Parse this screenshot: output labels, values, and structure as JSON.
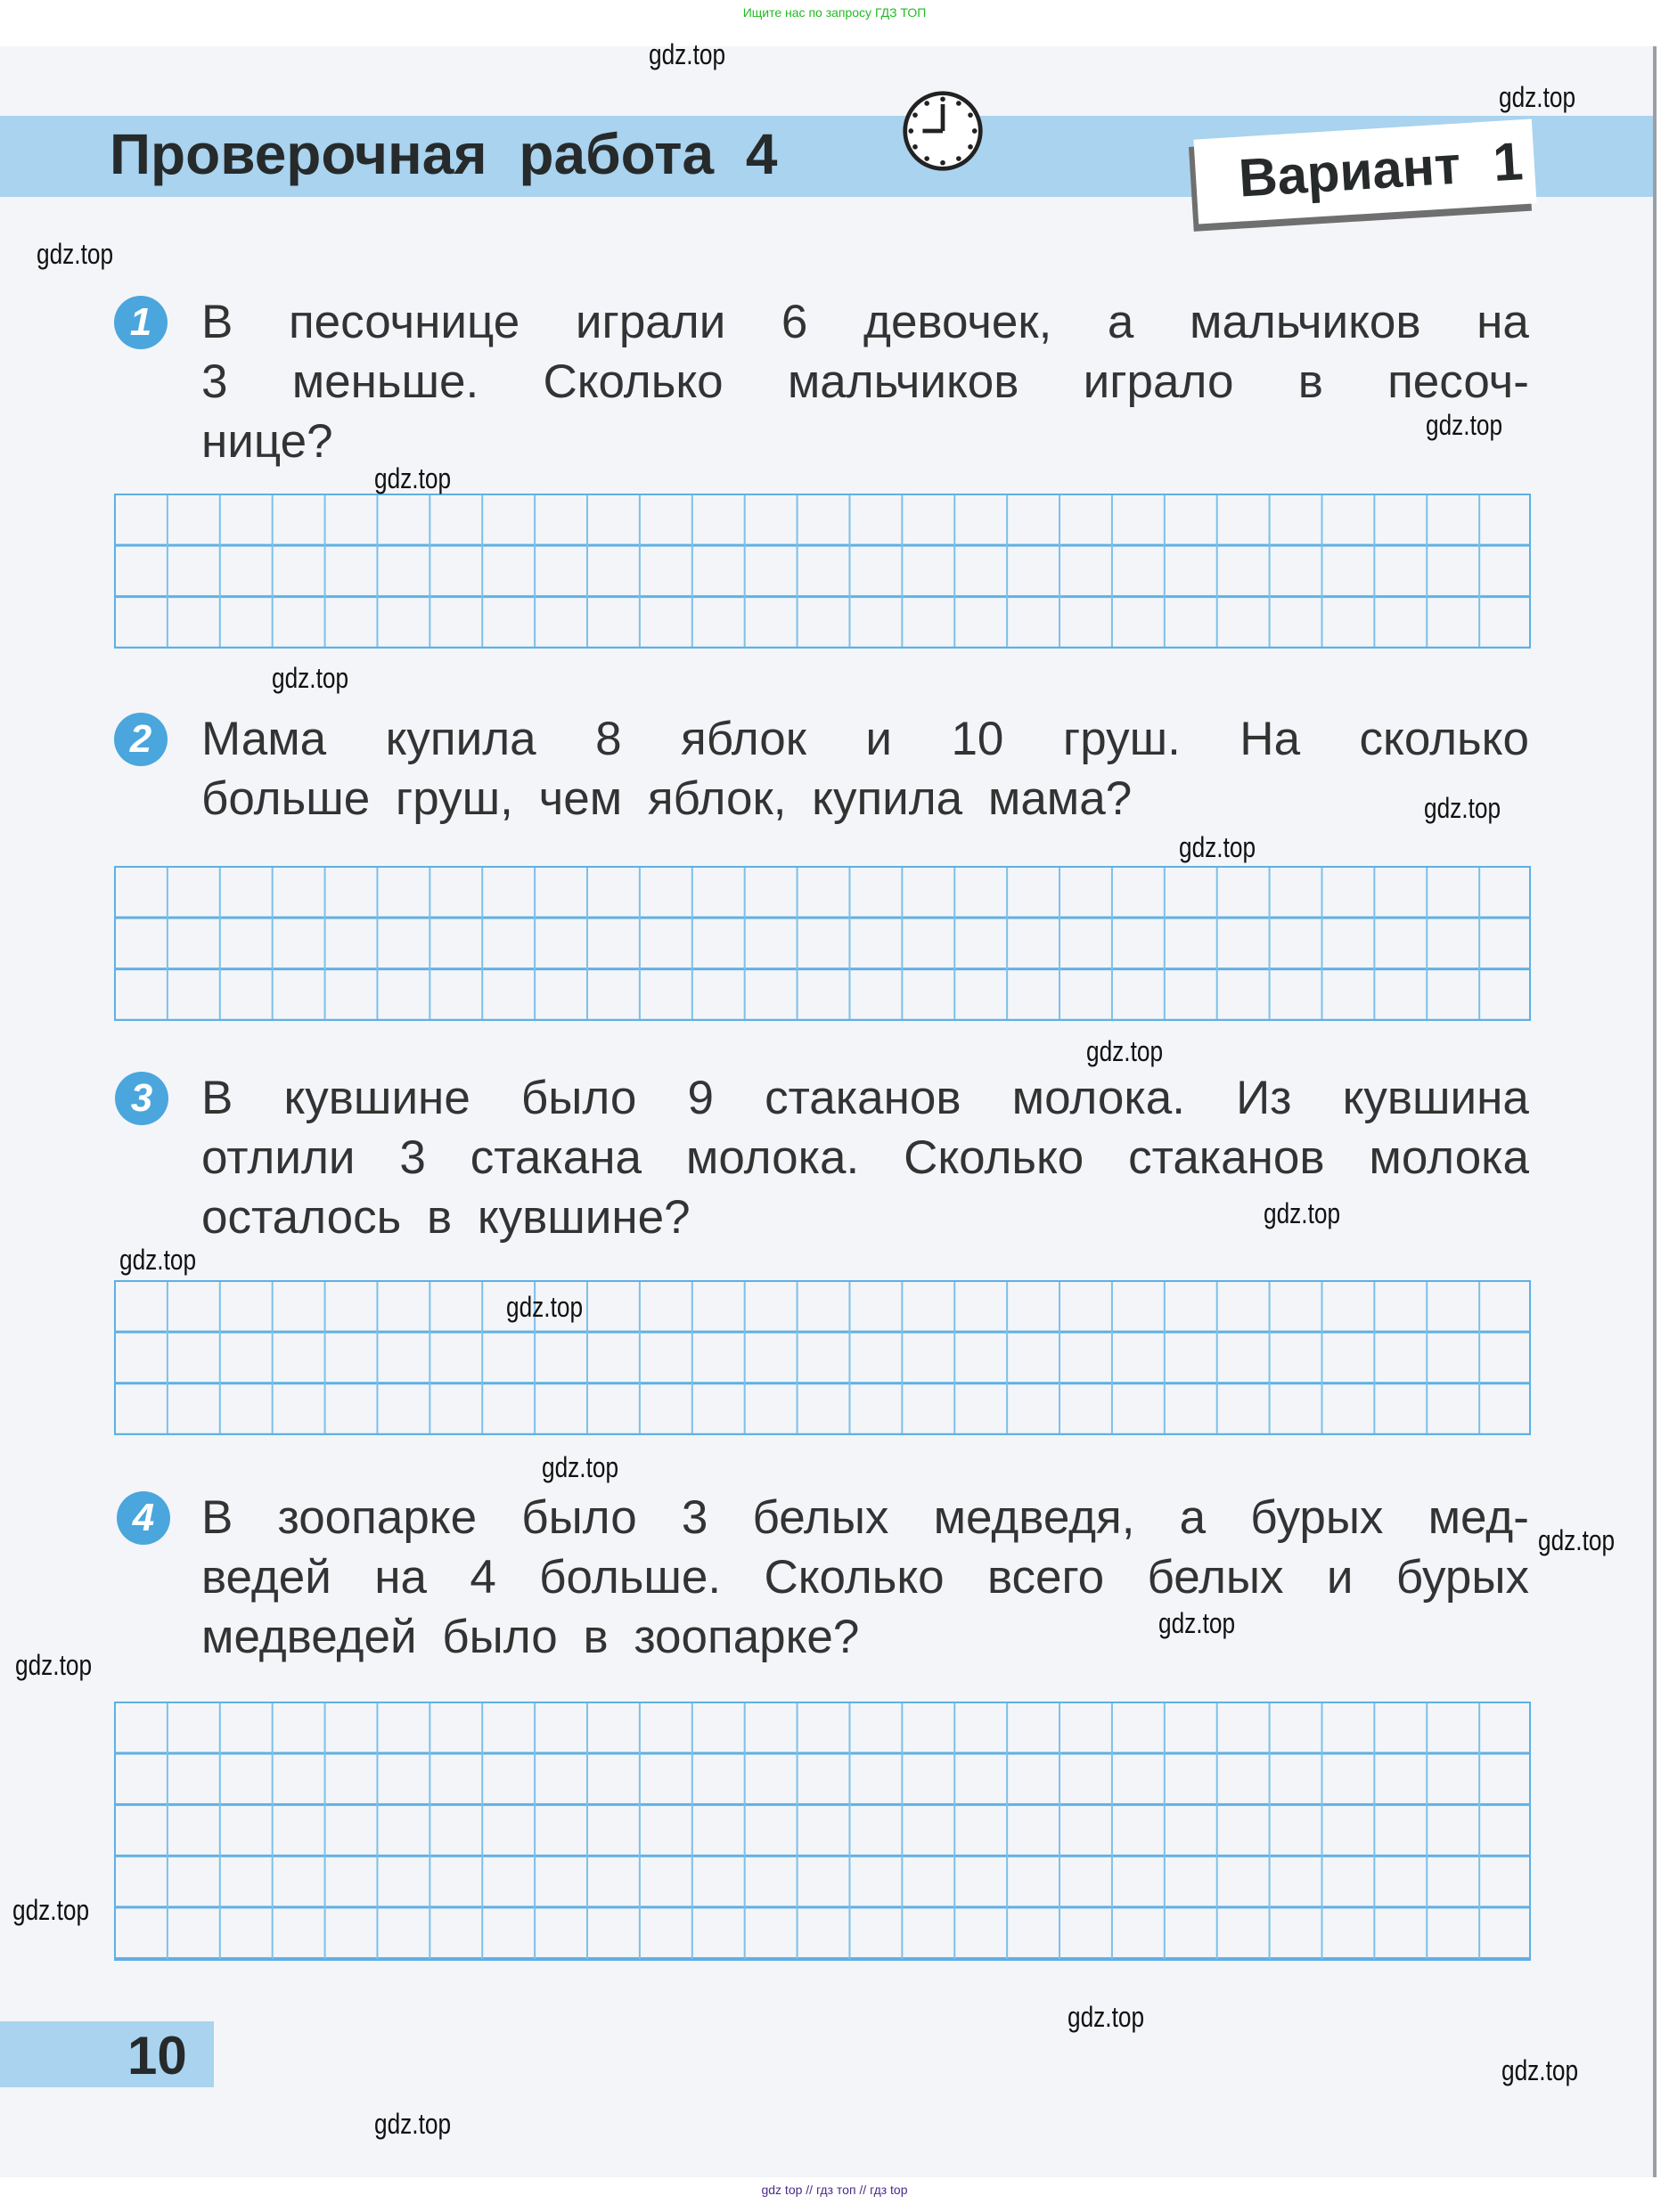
{
  "top_note": "Ищите нас по запросу ГДЗ ТОП",
  "header": {
    "title": "Проверочная работа 4",
    "variant": "Вариант 1",
    "clock_icon": "clock-icon"
  },
  "questions": [
    {
      "number": "1",
      "lines": [
        "В песочнице играли 6 девочек, а мальчиков на",
        "3 меньше. Сколько мальчиков играло в песоч-",
        "нице?"
      ],
      "grid_rows": 3
    },
    {
      "number": "2",
      "lines": [
        "Мама купила 8 яблок и 10 груш. На сколько",
        "больше груш, чем яблок, купила мама?"
      ],
      "grid_rows": 3
    },
    {
      "number": "3",
      "lines": [
        "В кувшине было 9 стаканов молока. Из кувшина",
        "отлили 3 стакана молока. Сколько стаканов молока",
        "осталось в кувшине?"
      ],
      "grid_rows": 3
    },
    {
      "number": "4",
      "lines": [
        "В зоопарке было 3 белых медведя, а бурых мед-",
        "ведей на 4 больше. Сколько всего белых и бурых",
        "медведей было в зоопарке?"
      ],
      "grid_rows": 5
    }
  ],
  "grid_columns": 27,
  "page_number": "10",
  "watermark": "gdz.top",
  "bottom_note": "gdz top // гдз топ // гдз top",
  "colors": {
    "band": "#a9d3ee",
    "badge": "#4aa6dd",
    "grid": "#5fb0e4"
  }
}
